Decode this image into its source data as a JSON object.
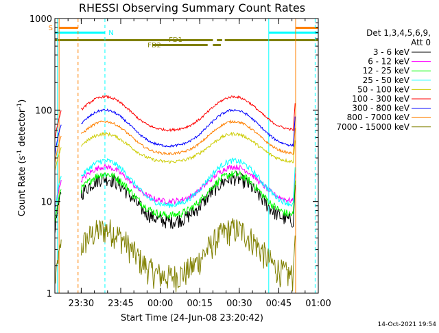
{
  "chart_data": {
    "type": "line",
    "title": "RHESSI Observing Summary Count Rates",
    "xlabel": "Start Time (24-Jun-08 23:20:42)",
    "ylabel_main": "Count Rate (s",
    "ylabel_sup1": "-1",
    "ylabel_mid": " detector",
    "ylabel_sup2": "-1",
    "ylabel_end": ")",
    "y_scale": "log",
    "ylim": [
      1,
      1000
    ],
    "xlim_minutes": [
      0,
      100
    ],
    "x_ticks": [
      {
        "label": "23:30",
        "minute": 10
      },
      {
        "label": "23:45",
        "minute": 25
      },
      {
        "label": "00:00",
        "minute": 40
      },
      {
        "label": "00:15",
        "minute": 55
      },
      {
        "label": "00:30",
        "minute": 70
      },
      {
        "label": "00:45",
        "minute": 85
      },
      {
        "label": "01:00",
        "minute": 100
      }
    ],
    "y_ticks": [
      {
        "label": "1",
        "value": 1
      },
      {
        "label": "10",
        "value": 10
      },
      {
        "label": "100",
        "value": 100
      },
      {
        "label": "1000",
        "value": 1000
      }
    ],
    "legend": {
      "header1": "Det 1,3,4,5,6,9,",
      "header2": "Att 0",
      "placement": "right"
    },
    "series": [
      {
        "name": "3 - 6 keV",
        "color": "#000000",
        "min": 6,
        "max": 18,
        "noise": 0.18
      },
      {
        "name": "6 - 12 keV",
        "color": "#ff00ff",
        "min": 10,
        "max": 24,
        "noise": 0.07
      },
      {
        "name": "12 - 25 keV",
        "color": "#00ff00",
        "min": 7,
        "max": 20,
        "noise": 0.1
      },
      {
        "name": "25 - 50 keV",
        "color": "#00ffff",
        "min": 9,
        "max": 28,
        "noise": 0.07
      },
      {
        "name": "50 - 100 keV",
        "color": "#cccc00",
        "min": 27,
        "max": 55,
        "noise": 0.04
      },
      {
        "name": "100 - 300 keV",
        "color": "#ff0000",
        "min": 60,
        "max": 140,
        "noise": 0.03
      },
      {
        "name": "300 - 800 keV",
        "color": "#0000ff",
        "min": 40,
        "max": 100,
        "noise": 0.03
      },
      {
        "name": "800 - 7000 keV",
        "color": "#ff8000",
        "min": 33,
        "max": 75,
        "noise": 0.03
      },
      {
        "name": "7000 - 15000 keV",
        "color": "#808000",
        "min": 1.5,
        "max": 5,
        "noise": 0.35
      }
    ],
    "flags": [
      {
        "label": "S",
        "color": "#ff8000"
      },
      {
        "label": "N",
        "color": "#00ffff"
      },
      {
        "label": "FD1",
        "color": "#808000"
      },
      {
        "label": "FD2",
        "color": "#808000"
      }
    ],
    "grid": false
  },
  "footer": {
    "timestamp": "14-Oct-2021 19:54"
  }
}
